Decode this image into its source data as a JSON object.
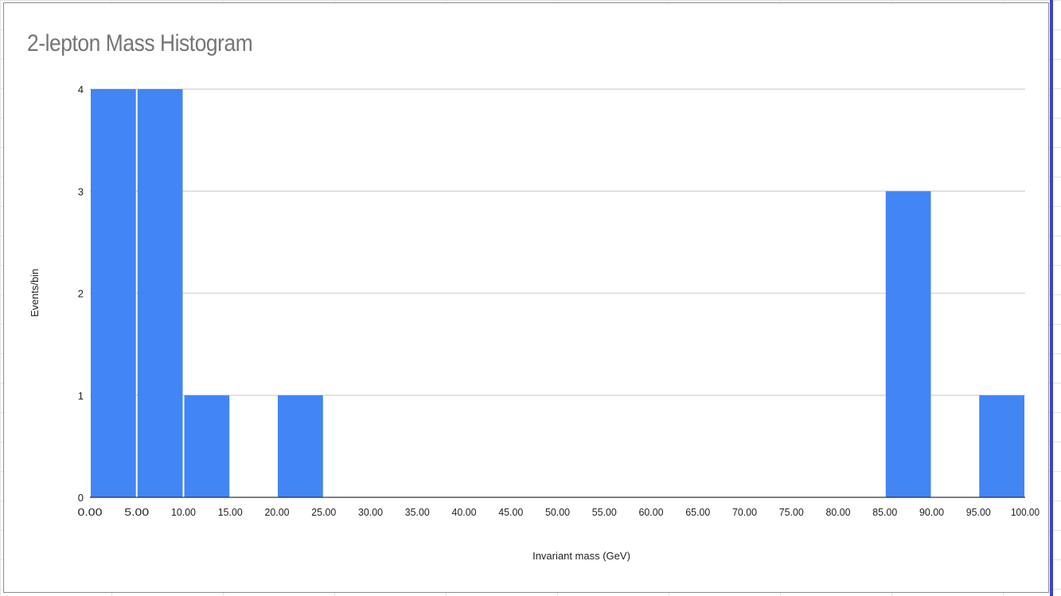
{
  "chart_data": {
    "type": "bar",
    "title": "2-lepton Mass Histogram",
    "xlabel": "Invariant mass (GeV)",
    "ylabel": "Events/bin",
    "x_ticks": [
      "0.00",
      "5.00",
      "10.00",
      "15.00",
      "20.00",
      "25.00",
      "30.00",
      "35.00",
      "40.00",
      "45.00",
      "50.00",
      "55.00",
      "60.00",
      "65.00",
      "70.00",
      "75.00",
      "80.00",
      "85.00",
      "90.00",
      "95.00",
      "100.00"
    ],
    "y_ticks": [
      "0",
      "1",
      "2",
      "3",
      "4"
    ],
    "xlim": [
      0,
      100
    ],
    "ylim": [
      0,
      4
    ],
    "bin_width": 5,
    "bins": [
      {
        "start": 0,
        "end": 5,
        "value": 4
      },
      {
        "start": 5,
        "end": 10,
        "value": 4
      },
      {
        "start": 10,
        "end": 15,
        "value": 1
      },
      {
        "start": 20,
        "end": 25,
        "value": 1
      },
      {
        "start": 85,
        "end": 90,
        "value": 3
      },
      {
        "start": 95,
        "end": 100,
        "value": 1
      }
    ],
    "bar_color": "#4285f4",
    "grid": true,
    "legend": "none"
  }
}
